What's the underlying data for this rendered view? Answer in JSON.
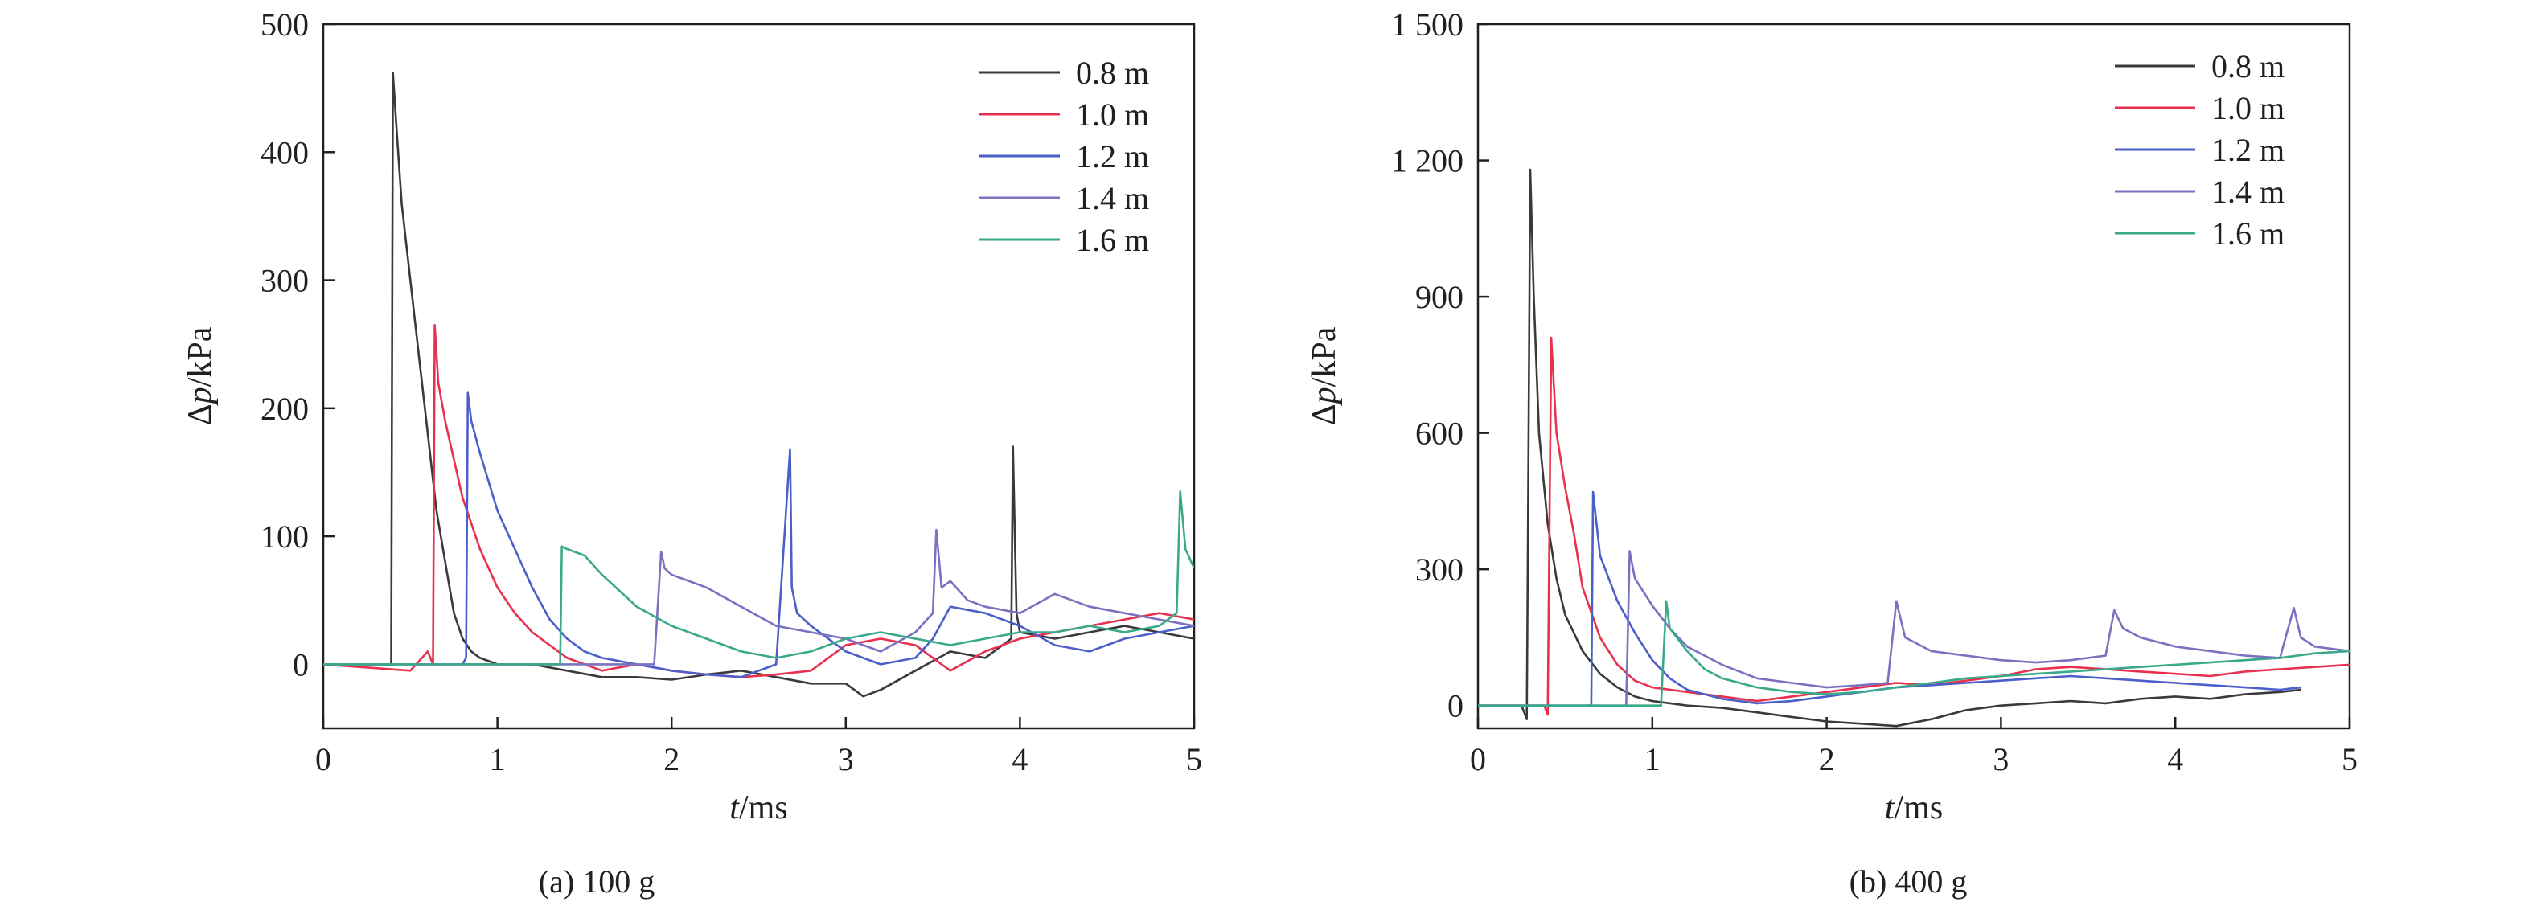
{
  "figure": {
    "panels": [
      {
        "caption": "(a) 100 g"
      },
      {
        "caption": "(b) 400 g"
      }
    ]
  },
  "chart_data": [
    {
      "type": "line",
      "caption": "(a) 100 g",
      "xlabel_prefix": "t",
      "xlabel_suffix": "/ms",
      "ylabel_prefix": "Δ",
      "ylabel_var": "p",
      "ylabel_suffix": "/kPa",
      "xlim": [
        0,
        5
      ],
      "ylim": [
        -50,
        500
      ],
      "xticks": [
        0,
        1,
        2,
        3,
        4,
        5
      ],
      "xtick_labels": [
        "0",
        "1",
        "2",
        "3",
        "4",
        "5"
      ],
      "yticks": [
        0,
        100,
        200,
        300,
        400,
        500
      ],
      "ytick_labels": [
        "0",
        "100",
        "200",
        "300",
        "400",
        "500"
      ],
      "grid": false,
      "legend_position": "top-right",
      "series": [
        {
          "name": "0.8 m",
          "color": "#3a3a3a",
          "x": [
            0,
            0.38,
            0.39,
            0.4,
            0.42,
            0.45,
            0.5,
            0.55,
            0.6,
            0.65,
            0.7,
            0.75,
            0.8,
            0.85,
            0.9,
            1.0,
            1.2,
            1.4,
            1.6,
            1.8,
            2.0,
            2.2,
            2.4,
            2.6,
            2.8,
            3.0,
            3.1,
            3.2,
            3.4,
            3.6,
            3.8,
            3.95,
            3.96,
            3.98,
            4.0,
            4.2,
            4.4,
            4.6,
            4.8,
            5.0
          ],
          "y": [
            0,
            0,
            0,
            462,
            420,
            360,
            300,
            240,
            180,
            120,
            80,
            40,
            20,
            10,
            5,
            0,
            0,
            -5,
            -10,
            -10,
            -12,
            -8,
            -5,
            -10,
            -15,
            -15,
            -25,
            -20,
            -5,
            10,
            5,
            20,
            170,
            40,
            25,
            20,
            25,
            30,
            25,
            20
          ]
        },
        {
          "name": "1.0 m",
          "color": "#e8314f",
          "x": [
            0,
            0.5,
            0.6,
            0.63,
            0.64,
            0.66,
            0.7,
            0.8,
            0.9,
            1.0,
            1.1,
            1.2,
            1.3,
            1.4,
            1.6,
            1.8,
            2.0,
            2.2,
            2.4,
            2.6,
            2.8,
            3.0,
            3.2,
            3.4,
            3.6,
            3.8,
            4.0,
            4.2,
            4.4,
            4.6,
            4.8,
            5.0
          ],
          "y": [
            0,
            -5,
            10,
            0,
            265,
            220,
            190,
            130,
            90,
            60,
            40,
            25,
            15,
            5,
            -5,
            0,
            -5,
            -8,
            -10,
            -8,
            -5,
            15,
            20,
            15,
            -5,
            10,
            20,
            25,
            30,
            35,
            40,
            35
          ]
        },
        {
          "name": "1.2 m",
          "color": "#4c5fc9",
          "x": [
            0,
            0.7,
            0.8,
            0.82,
            0.83,
            0.85,
            0.9,
            1.0,
            1.1,
            1.2,
            1.3,
            1.4,
            1.5,
            1.6,
            1.8,
            2.0,
            2.2,
            2.4,
            2.6,
            2.68,
            2.69,
            2.72,
            2.8,
            3.0,
            3.2,
            3.4,
            3.5,
            3.6,
            3.8,
            4.0,
            4.2,
            4.4,
            4.6,
            4.8,
            5.0
          ],
          "y": [
            0,
            0,
            0,
            5,
            212,
            190,
            165,
            120,
            90,
            60,
            35,
            20,
            10,
            5,
            0,
            -5,
            -8,
            -10,
            0,
            168,
            60,
            40,
            30,
            10,
            0,
            5,
            20,
            45,
            40,
            30,
            15,
            10,
            20,
            25,
            30
          ]
        },
        {
          "name": "1.4 m",
          "color": "#7a72c0",
          "x": [
            0,
            1.0,
            1.5,
            1.9,
            1.94,
            1.96,
            2.0,
            2.2,
            2.4,
            2.6,
            2.8,
            3.0,
            3.2,
            3.4,
            3.5,
            3.52,
            3.55,
            3.6,
            3.7,
            3.8,
            4.0,
            4.2,
            4.4,
            4.6,
            4.8,
            5.0
          ],
          "y": [
            0,
            0,
            0,
            0,
            88,
            75,
            70,
            60,
            45,
            30,
            25,
            20,
            10,
            25,
            40,
            105,
            60,
            65,
            50,
            45,
            40,
            55,
            45,
            40,
            35,
            30
          ]
        },
        {
          "name": "1.6 m",
          "color": "#3aa98a",
          "x": [
            0,
            1.0,
            1.3,
            1.36,
            1.37,
            1.4,
            1.5,
            1.6,
            1.8,
            2.0,
            2.2,
            2.4,
            2.6,
            2.8,
            3.0,
            3.2,
            3.4,
            3.6,
            3.8,
            4.0,
            4.2,
            4.4,
            4.6,
            4.8,
            4.9,
            4.92,
            4.95,
            5.0
          ],
          "y": [
            0,
            0,
            0,
            0,
            92,
            90,
            85,
            70,
            45,
            30,
            20,
            10,
            5,
            10,
            20,
            25,
            20,
            15,
            20,
            25,
            25,
            30,
            25,
            30,
            40,
            135,
            90,
            75
          ]
        }
      ]
    },
    {
      "type": "line",
      "caption": "(b) 400 g",
      "xlabel_prefix": "t",
      "xlabel_suffix": "/ms",
      "ylabel_prefix": "Δ",
      "ylabel_var": "p",
      "ylabel_suffix": "/kPa",
      "xlim": [
        0,
        5
      ],
      "ylim": [
        -50,
        1500
      ],
      "xticks": [
        0,
        1,
        2,
        3,
        4,
        5
      ],
      "xtick_labels": [
        "0",
        "1",
        "2",
        "3",
        "4",
        "5"
      ],
      "yticks": [
        0,
        300,
        600,
        900,
        1200,
        1500
      ],
      "ytick_labels": [
        "0",
        "300",
        "600",
        "900",
        "1 200",
        "1 500"
      ],
      "grid": false,
      "legend_position": "top-right",
      "series": [
        {
          "name": "0.8 m",
          "color": "#3a3a3a",
          "x": [
            0,
            0.25,
            0.28,
            0.3,
            0.32,
            0.35,
            0.4,
            0.45,
            0.5,
            0.6,
            0.7,
            0.8,
            0.9,
            1.0,
            1.2,
            1.4,
            1.6,
            1.8,
            2.0,
            2.2,
            2.4,
            2.6,
            2.8,
            3.0,
            3.2,
            3.4,
            3.6,
            3.8,
            4.0,
            4.2,
            4.4,
            4.6,
            4.72
          ],
          "y": [
            0,
            0,
            -30,
            1180,
            900,
            600,
            400,
            280,
            200,
            120,
            70,
            40,
            20,
            10,
            0,
            -5,
            -15,
            -25,
            -35,
            -40,
            -45,
            -30,
            -10,
            0,
            5,
            10,
            5,
            15,
            20,
            15,
            25,
            30,
            35
          ]
        },
        {
          "name": "1.0 m",
          "color": "#e8314f",
          "x": [
            0,
            0.38,
            0.4,
            0.42,
            0.45,
            0.5,
            0.55,
            0.6,
            0.7,
            0.8,
            0.9,
            1.0,
            1.2,
            1.4,
            1.6,
            1.8,
            2.0,
            2.2,
            2.4,
            2.6,
            2.8,
            3.0,
            3.2,
            3.4,
            3.6,
            3.8,
            4.0,
            4.2,
            4.4,
            4.6,
            4.8,
            5.0
          ],
          "y": [
            0,
            0,
            -20,
            810,
            600,
            480,
            380,
            260,
            150,
            90,
            55,
            40,
            30,
            20,
            10,
            20,
            30,
            40,
            50,
            45,
            55,
            65,
            80,
            85,
            80,
            75,
            70,
            65,
            75,
            80,
            85,
            90
          ]
        },
        {
          "name": "1.2 m",
          "color": "#4c5fc9",
          "x": [
            0,
            0.6,
            0.65,
            0.66,
            0.7,
            0.8,
            0.9,
            1.0,
            1.1,
            1.2,
            1.4,
            1.6,
            1.8,
            2.0,
            2.2,
            2.4,
            2.6,
            2.8,
            3.0,
            3.2,
            3.4,
            3.6,
            3.8,
            4.0,
            4.2,
            4.4,
            4.6,
            4.72
          ],
          "y": [
            0,
            0,
            0,
            470,
            330,
            230,
            160,
            100,
            60,
            35,
            15,
            5,
            10,
            20,
            30,
            40,
            45,
            50,
            55,
            60,
            65,
            60,
            55,
            50,
            45,
            40,
            35,
            40
          ]
        },
        {
          "name": "1.4 m",
          "color": "#7a72c0",
          "x": [
            0,
            0.85,
            0.87,
            0.9,
            1.0,
            1.1,
            1.2,
            1.4,
            1.6,
            1.8,
            2.0,
            2.2,
            2.35,
            2.4,
            2.45,
            2.6,
            2.8,
            3.0,
            3.2,
            3.4,
            3.6,
            3.65,
            3.7,
            3.8,
            4.0,
            4.2,
            4.4,
            4.6,
            4.68,
            4.72,
            4.8,
            5.0
          ],
          "y": [
            0,
            0,
            340,
            280,
            220,
            170,
            130,
            90,
            60,
            50,
            40,
            45,
            50,
            230,
            150,
            120,
            110,
            100,
            95,
            100,
            110,
            210,
            170,
            150,
            130,
            120,
            110,
            105,
            215,
            150,
            130,
            120
          ]
        },
        {
          "name": "1.6 m",
          "color": "#3aa98a",
          "x": [
            0,
            0.95,
            1.05,
            1.08,
            1.1,
            1.2,
            1.3,
            1.4,
            1.6,
            1.8,
            2.0,
            2.2,
            2.4,
            2.6,
            2.8,
            3.0,
            3.2,
            3.4,
            3.6,
            3.8,
            4.0,
            4.2,
            4.4,
            4.6,
            4.8,
            5.0
          ],
          "y": [
            0,
            0,
            0,
            230,
            170,
            120,
            80,
            60,
            40,
            30,
            25,
            30,
            40,
            50,
            60,
            65,
            70,
            75,
            80,
            85,
            90,
            95,
            100,
            105,
            115,
            120
          ]
        }
      ]
    }
  ]
}
